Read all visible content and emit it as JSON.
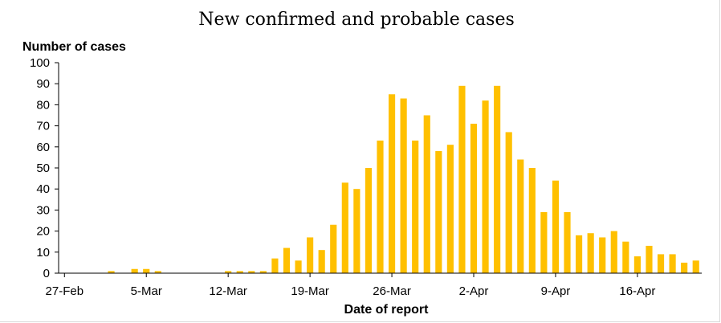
{
  "chart_data": {
    "type": "bar",
    "title": "New confirmed and probable cases",
    "ylabel": "Number of cases",
    "xlabel": "Date of report",
    "ylim": [
      0,
      100
    ],
    "yticks": [
      0,
      10,
      20,
      30,
      40,
      50,
      60,
      70,
      80,
      90,
      100
    ],
    "bar_color": "#ffc000",
    "xtick_labels": [
      {
        "index": 0,
        "label": "27-Feb"
      },
      {
        "index": 7,
        "label": "5-Mar"
      },
      {
        "index": 14,
        "label": "12-Mar"
      },
      {
        "index": 21,
        "label": "19-Mar"
      },
      {
        "index": 28,
        "label": "26-Mar"
      },
      {
        "index": 35,
        "label": "2-Apr"
      },
      {
        "index": 42,
        "label": "9-Apr"
      },
      {
        "index": 49,
        "label": "16-Apr"
      }
    ],
    "values": [
      0,
      0,
      0,
      0,
      1,
      0,
      2,
      2,
      1,
      0,
      0,
      0,
      0,
      0,
      1,
      1,
      1,
      1,
      7,
      12,
      6,
      17,
      11,
      23,
      43,
      40,
      50,
      63,
      85,
      83,
      63,
      75,
      58,
      61,
      89,
      71,
      82,
      89,
      67,
      54,
      50,
      29,
      44,
      29,
      18,
      19,
      17,
      20,
      15,
      8,
      13,
      9,
      9,
      5,
      6
    ]
  }
}
